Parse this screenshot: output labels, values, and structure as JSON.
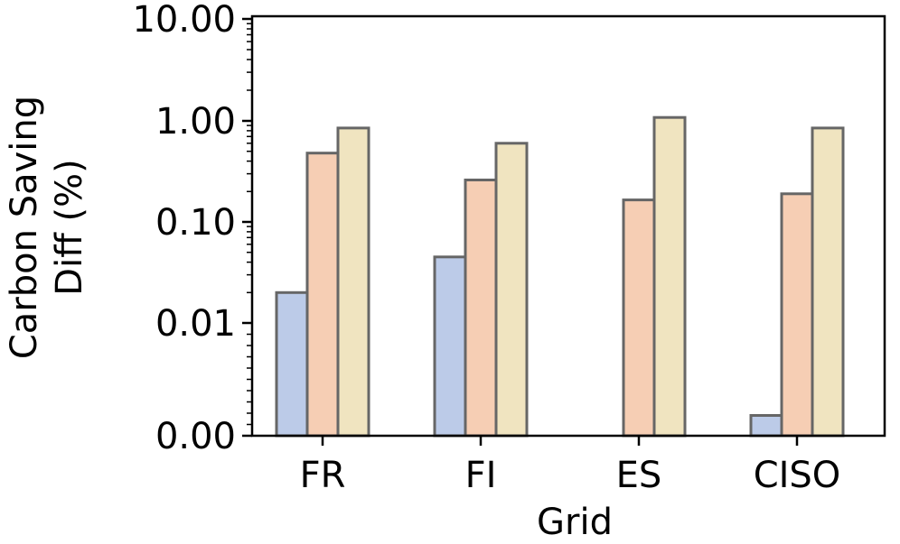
{
  "chart_data": {
    "type": "bar",
    "xlabel": "Grid",
    "ylabel_lines": [
      "Carbon Saving",
      "Diff (%)"
    ],
    "yscale": "symlog",
    "ylim": [
      0,
      10
    ],
    "yticks": [
      0,
      0.01,
      0.1,
      1,
      10
    ],
    "ytick_labels": [
      "0.00",
      "0.01",
      "0.10",
      "1.00",
      "10.00"
    ],
    "categories": [
      "FR",
      "FI",
      "ES",
      "CISO"
    ],
    "series": [
      {
        "color": "#bccbe8",
        "values": [
          0.02,
          0.045,
          0.0,
          0.0018
        ]
      },
      {
        "color": "#f6ceb4",
        "values": [
          0.48,
          0.26,
          0.165,
          0.19
        ]
      },
      {
        "color": "#f0e4c0",
        "values": [
          0.85,
          0.6,
          1.08,
          0.85
        ]
      }
    ],
    "bar_edge_color": "#666666",
    "grid": false,
    "legend": "none"
  }
}
